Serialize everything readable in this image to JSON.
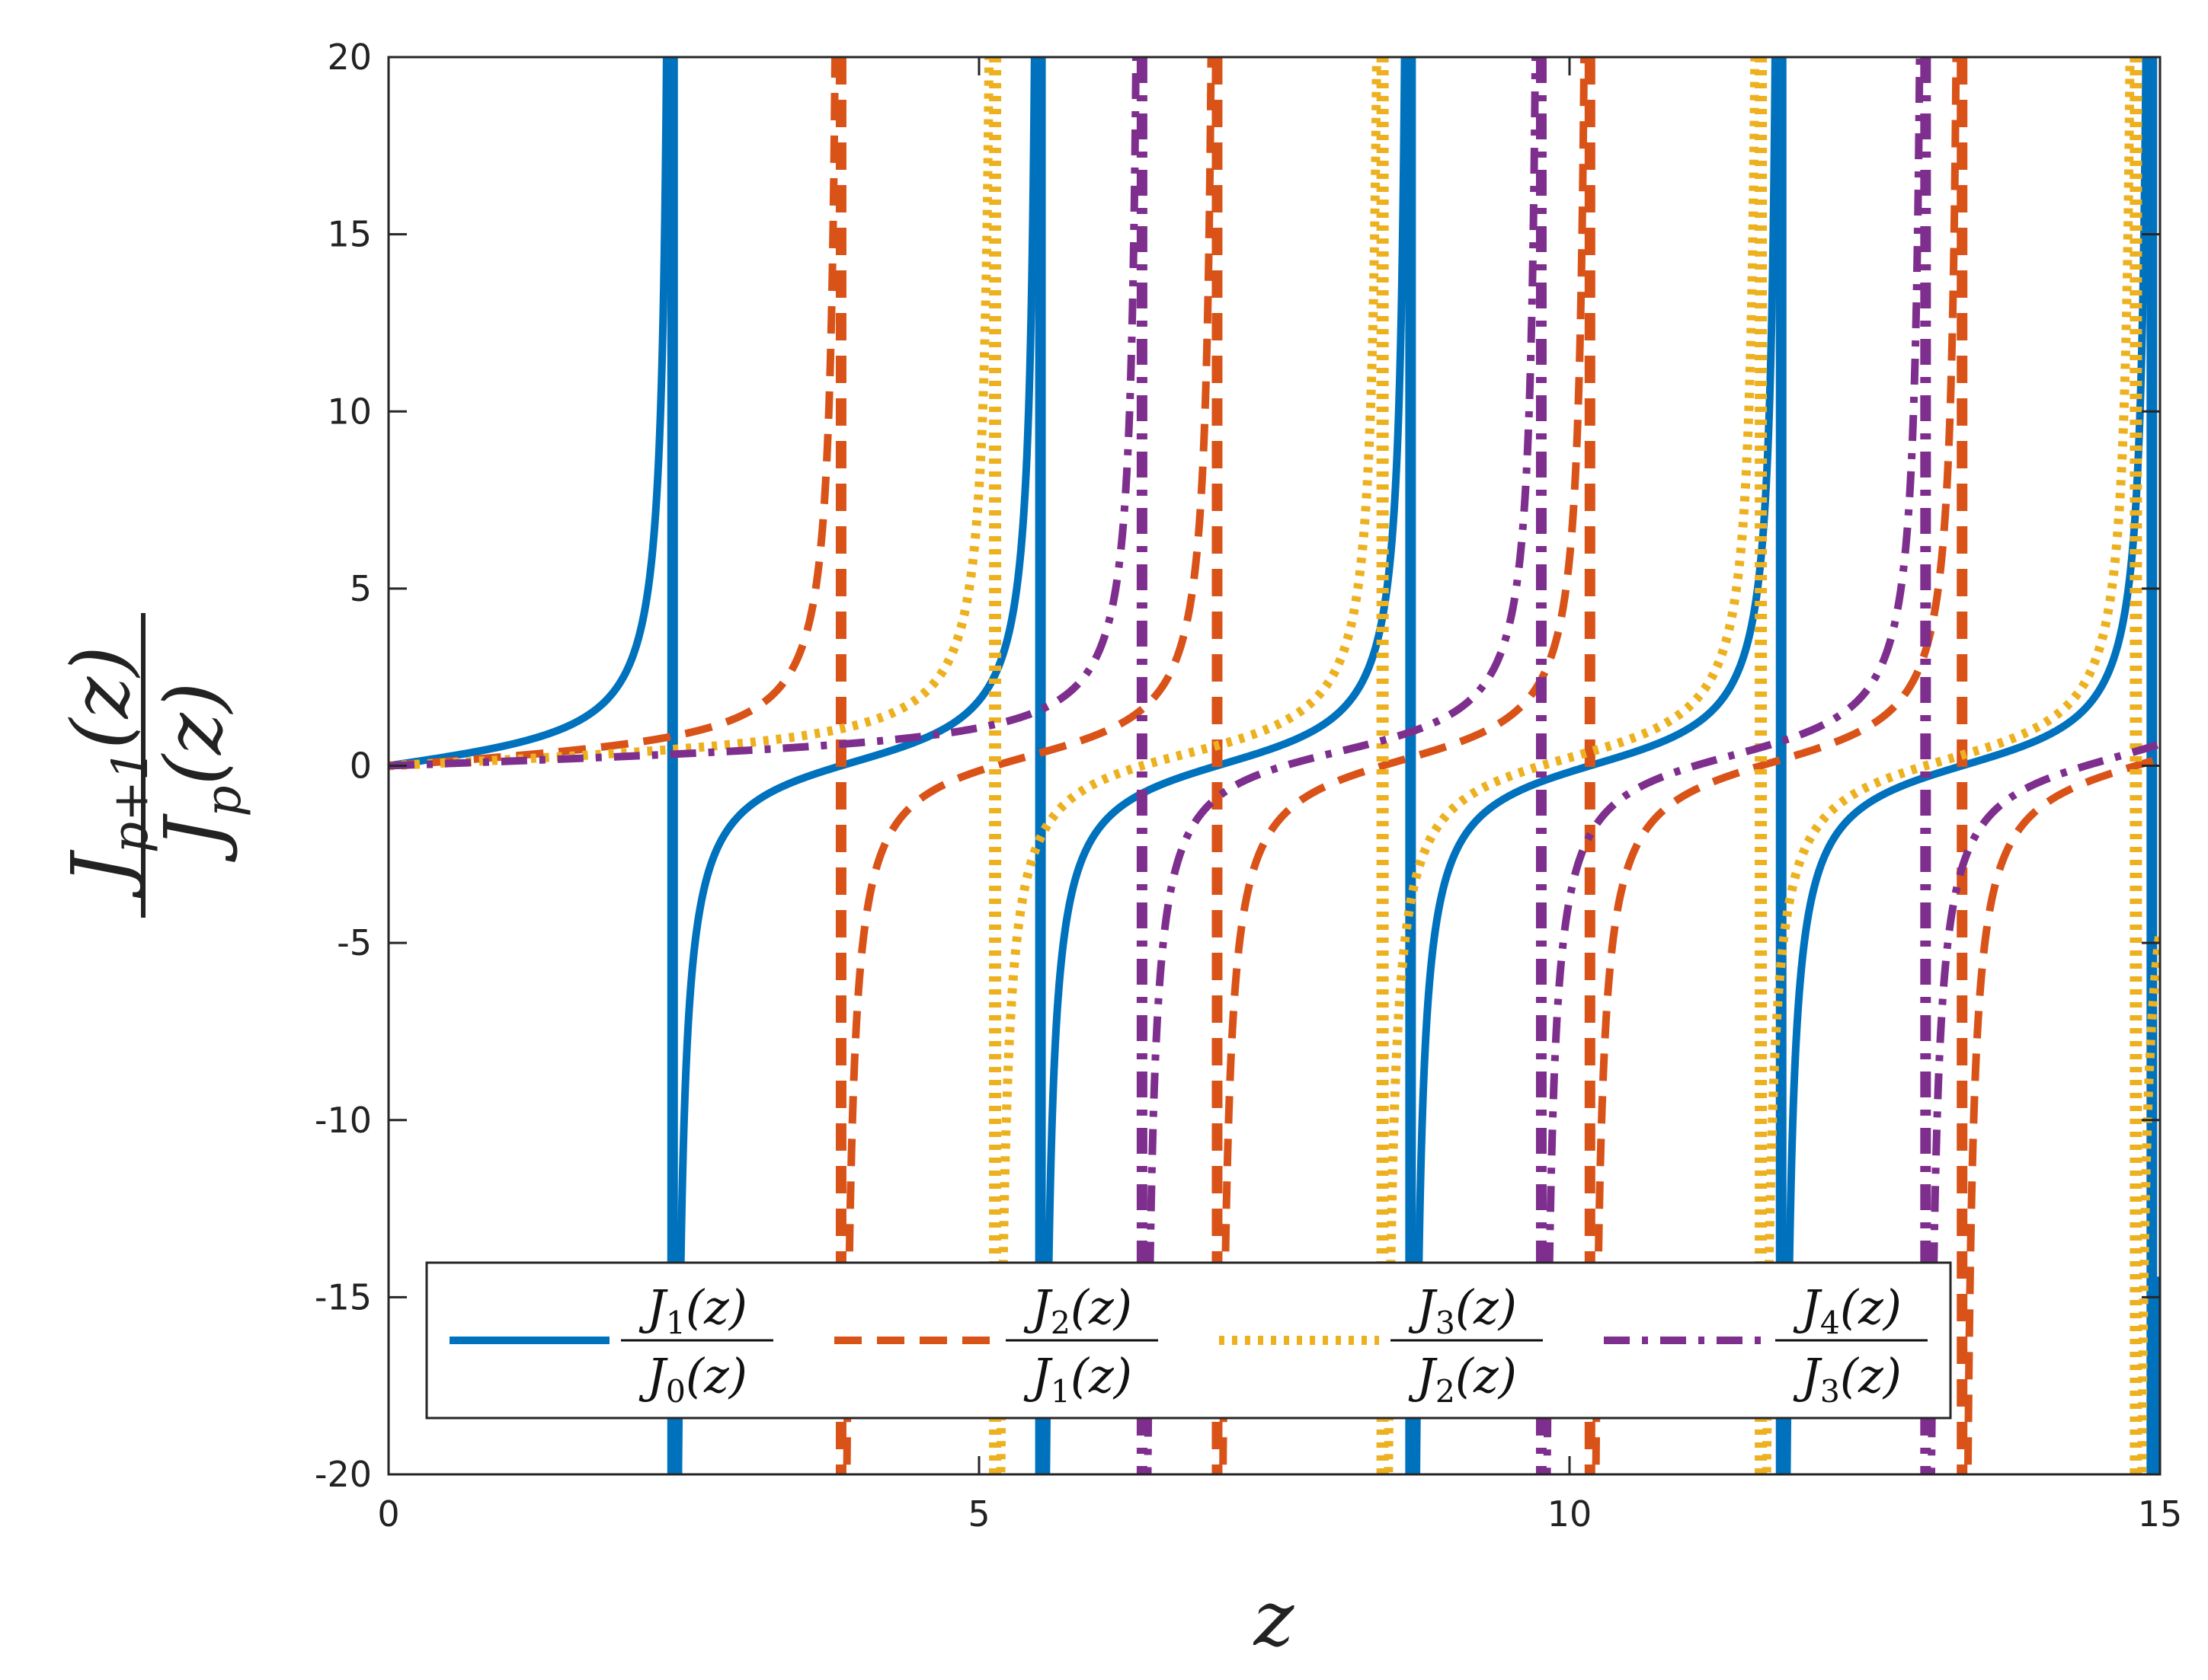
{
  "chart_data": {
    "type": "line",
    "xlabel": "z",
    "ylabel": {
      "numerator": "J_{p+1}(z)",
      "denominator": "J_p(z)"
    },
    "xlim": [
      0,
      15
    ],
    "ylim": [
      -20,
      20
    ],
    "xticks": [
      0,
      5,
      10,
      15
    ],
    "yticks": [
      -20,
      -15,
      -10,
      -5,
      0,
      5,
      10,
      15,
      20
    ],
    "xtick_labels": [
      "0",
      "5",
      "10",
      "15"
    ],
    "ytick_labels": [
      "-20",
      "-15",
      "-10",
      "-5",
      "0",
      "5",
      "10",
      "15",
      "20"
    ],
    "grid": false,
    "legend_position": "bottom",
    "series": [
      {
        "name": "J1(z)/J0(z)",
        "label_num": {
          "base": "J",
          "sub": "1",
          "arg": "(z)"
        },
        "label_den": {
          "base": "J",
          "sub": "0",
          "arg": "(z)"
        },
        "p": 0,
        "color": "#0072BD",
        "style": "solid",
        "asymptotes": [
          2.405,
          5.52,
          8.654,
          11.792,
          14.931
        ]
      },
      {
        "name": "J2(z)/J1(z)",
        "label_num": {
          "base": "J",
          "sub": "2",
          "arg": "(z)"
        },
        "label_den": {
          "base": "J",
          "sub": "1",
          "arg": "(z)"
        },
        "p": 1,
        "color": "#D95319",
        "style": "dashed",
        "asymptotes": [
          3.832,
          7.016,
          10.173,
          13.324
        ]
      },
      {
        "name": "J3(z)/J2(z)",
        "label_num": {
          "base": "J",
          "sub": "3",
          "arg": "(z)"
        },
        "label_den": {
          "base": "J",
          "sub": "2",
          "arg": "(z)"
        },
        "p": 2,
        "color": "#EDB120",
        "style": "dotted",
        "asymptotes": [
          5.136,
          8.417,
          11.62,
          14.796
        ]
      },
      {
        "name": "J4(z)/J3(z)",
        "label_num": {
          "base": "J",
          "sub": "4",
          "arg": "(z)"
        },
        "label_den": {
          "base": "J",
          "sub": "3",
          "arg": "(z)"
        },
        "p": 3,
        "color": "#7E2F8E",
        "style": "dashdot",
        "asymptotes": [
          6.38,
          9.761,
          13.015
        ]
      }
    ]
  }
}
